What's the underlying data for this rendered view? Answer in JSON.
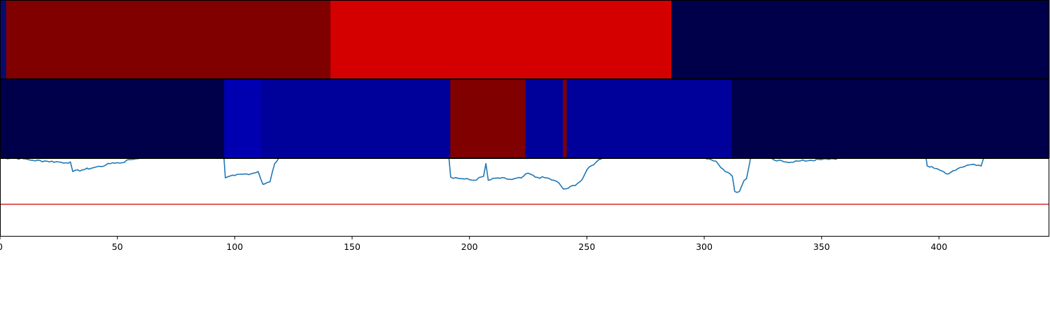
{
  "chart_data": {
    "type": "heatmap",
    "x_range": [
      0,
      447
    ],
    "xticks": [
      0,
      50,
      100,
      150,
      200,
      250,
      300,
      350,
      400
    ],
    "xtick_labels": [
      "0",
      "50",
      "100",
      "150",
      "200",
      "250",
      "300",
      "350",
      "400"
    ],
    "colormap": "seismic",
    "heatmap_rows": [
      {
        "segments": [
          {
            "start": 0,
            "end": 2.6,
            "color": "#0a0a6e"
          },
          {
            "start": 2.6,
            "end": 140.8,
            "color": "#800000"
          },
          {
            "start": 140.8,
            "end": 286,
            "color": "#d40000"
          },
          {
            "start": 286,
            "end": 447,
            "color": "#00004a"
          }
        ]
      },
      {
        "segments": [
          {
            "start": 0,
            "end": 95.5,
            "color": "#00004a"
          },
          {
            "start": 95.5,
            "end": 111.5,
            "color": "#0000b0"
          },
          {
            "start": 111.5,
            "end": 191.8,
            "color": "#00009a"
          },
          {
            "start": 191.8,
            "end": 223.8,
            "color": "#800000"
          },
          {
            "start": 223.8,
            "end": 239.8,
            "color": "#00009a"
          },
          {
            "start": 239.8,
            "end": 241.4,
            "color": "#800000"
          },
          {
            "start": 241.4,
            "end": 311.7,
            "color": "#00009a"
          },
          {
            "start": 311.7,
            "end": 313.3,
            "color": "#00004a"
          },
          {
            "start": 313.3,
            "end": 447,
            "color": "#00004a"
          }
        ]
      }
    ],
    "line_panel": {
      "ylim": [
        0,
        1
      ],
      "line_color": "#1f77b4",
      "threshold": 0.3,
      "threshold_color": "#d62728",
      "keypoints": [
        [
          0,
          0.88
        ],
        [
          5,
          0.88
        ],
        [
          10,
          0.87
        ],
        [
          12,
          0.86
        ],
        [
          14,
          0.85
        ],
        [
          20,
          0.84
        ],
        [
          25,
          0.83
        ],
        [
          28,
          0.82
        ],
        [
          30,
          0.83
        ],
        [
          31,
          0.71
        ],
        [
          35,
          0.73
        ],
        [
          40,
          0.76
        ],
        [
          45,
          0.79
        ],
        [
          48,
          0.82
        ],
        [
          52,
          0.82
        ],
        [
          55,
          0.86
        ],
        [
          58,
          0.87
        ],
        [
          65,
          0.95
        ],
        [
          70,
          0.96
        ],
        [
          75,
          0.98
        ],
        [
          80,
          1.0
        ],
        [
          90,
          1.02
        ],
        [
          95,
          1.05
        ],
        [
          96,
          0.63
        ],
        [
          100,
          0.66
        ],
        [
          108,
          0.69
        ],
        [
          110,
          0.71
        ],
        [
          112,
          0.55
        ],
        [
          115,
          0.58
        ],
        [
          117,
          0.81
        ],
        [
          120,
          0.92
        ],
        [
          125,
          0.98
        ],
        [
          130,
          0.99
        ],
        [
          140,
          0.99
        ],
        [
          150,
          1.0
        ],
        [
          170,
          1.0
        ],
        [
          190,
          1.0
        ],
        [
          191,
          0.96
        ],
        [
          192,
          0.64
        ],
        [
          197,
          0.62
        ],
        [
          202,
          0.6
        ],
        [
          206,
          0.65
        ],
        [
          207,
          0.81
        ],
        [
          208,
          0.6
        ],
        [
          212,
          0.63
        ],
        [
          218,
          0.61
        ],
        [
          222,
          0.63
        ],
        [
          225,
          0.69
        ],
        [
          228,
          0.64
        ],
        [
          233,
          0.63
        ],
        [
          238,
          0.57
        ],
        [
          240,
          0.49
        ],
        [
          242,
          0.5
        ],
        [
          246,
          0.56
        ],
        [
          248,
          0.61
        ],
        [
          250,
          0.73
        ],
        [
          254,
          0.83
        ],
        [
          258,
          0.92
        ],
        [
          262,
          0.96
        ],
        [
          266,
          0.98
        ],
        [
          270,
          0.99
        ],
        [
          280,
          1.0
        ],
        [
          285,
          1.0
        ],
        [
          287,
          0.92
        ],
        [
          292,
          0.91
        ],
        [
          298,
          0.9
        ],
        [
          302,
          0.87
        ],
        [
          305,
          0.84
        ],
        [
          308,
          0.74
        ],
        [
          312,
          0.65
        ],
        [
          313,
          0.46
        ],
        [
          315,
          0.46
        ],
        [
          317,
          0.6
        ],
        [
          318,
          0.62
        ],
        [
          320,
          0.92
        ],
        [
          325,
          0.9
        ],
        [
          330,
          0.85
        ],
        [
          335,
          0.83
        ],
        [
          340,
          0.84
        ],
        [
          345,
          0.85
        ],
        [
          350,
          0.86
        ],
        [
          355,
          0.87
        ],
        [
          360,
          0.88
        ],
        [
          365,
          0.89
        ],
        [
          370,
          0.9
        ],
        [
          371,
          0.97
        ],
        [
          380,
          1.0
        ],
        [
          390,
          1.0
        ],
        [
          394,
          0.98
        ],
        [
          395,
          0.78
        ],
        [
          398,
          0.75
        ],
        [
          401,
          0.72
        ],
        [
          404,
          0.68
        ],
        [
          406,
          0.72
        ],
        [
          409,
          0.76
        ],
        [
          412,
          0.79
        ],
        [
          415,
          0.8
        ],
        [
          418,
          0.78
        ],
        [
          420,
          0.97
        ],
        [
          426,
          0.98
        ],
        [
          432,
          0.99
        ],
        [
          436,
          1.0
        ],
        [
          447,
          1.01
        ]
      ]
    }
  }
}
